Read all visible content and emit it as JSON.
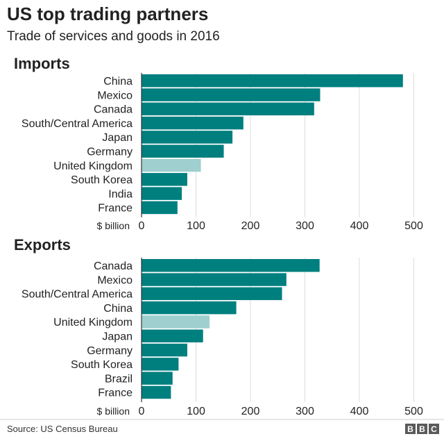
{
  "title": "US top trading partners",
  "subtitle": "Trade of services and goods in 2016",
  "source": "Source: US Census Bureau",
  "logo": "BBC",
  "colors": {
    "bar": "#007f7f",
    "highlight": "#9fcfcf",
    "grid": "#dcdcdc",
    "axis": "#333333"
  },
  "chart_data": [
    {
      "type": "bar",
      "orientation": "horizontal",
      "title": "Imports",
      "xlabel": "$ billion",
      "xlim": [
        0,
        500
      ],
      "xticks": [
        0,
        100,
        200,
        300,
        400,
        500
      ],
      "categories": [
        "China",
        "Mexico",
        "Canada",
        "South/Central America",
        "Japan",
        "Germany",
        "United Kingdom",
        "South Korea",
        "India",
        "France"
      ],
      "values": [
        480,
        328,
        317,
        187,
        167,
        151,
        109,
        84,
        74,
        66
      ],
      "highlight": "United Kingdom",
      "grid": true
    },
    {
      "type": "bar",
      "orientation": "horizontal",
      "title": "Exports",
      "xlabel": "$ billion",
      "xlim": [
        0,
        500
      ],
      "xticks": [
        0,
        100,
        200,
        300,
        400,
        500
      ],
      "categories": [
        "Canada",
        "Mexico",
        "South/Central America",
        "China",
        "United Kingdom",
        "Japan",
        "Germany",
        "South Korea",
        "Brazil",
        "France"
      ],
      "values": [
        327,
        266,
        258,
        174,
        125,
        113,
        84,
        68,
        57,
        54
      ],
      "highlight": "United Kingdom",
      "grid": true
    }
  ]
}
